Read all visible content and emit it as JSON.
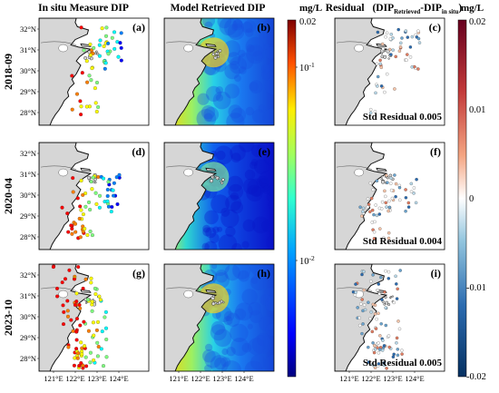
{
  "columns": {
    "insitu": "In situ Measure DIP",
    "model": "Model Retrieved DIP",
    "residual_prefix": "Residual",
    "residual_open": "(DIP",
    "residual_sub1": "Retrieved",
    "residual_mid": "-DIP",
    "residual_sub2": "in situ",
    "residual_close": ")"
  },
  "rows": [
    {
      "date": "2018-09",
      "panels": [
        "(a)",
        "(b)",
        "(c)"
      ],
      "std_label": "Std Residual 0.005"
    },
    {
      "date": "2020-04",
      "panels": [
        "(d)",
        "(e)",
        "(f)"
      ],
      "std_label": "Std Residual 0.004"
    },
    {
      "date": "2023-10",
      "panels": [
        "(g)",
        "(h)",
        "(i)"
      ],
      "std_label": "Std Residual 0.005"
    }
  ],
  "lat_ticks": [
    "32°N",
    "31°N",
    "30°N",
    "29°N",
    "28°N"
  ],
  "lon_ticks": [
    "121°E",
    "122°E",
    "123°E",
    "124°E"
  ],
  "colorbar_dip": {
    "unit": "mg/L",
    "scale": "log",
    "range": [
      0.005,
      0.02
    ],
    "tick_labels": [
      "0.02",
      "10",
      "-1",
      "10",
      "-2"
    ],
    "colors": [
      "#00007f",
      "#0000ff",
      "#007fff",
      "#00ffff",
      "#7fff7f",
      "#ffff00",
      "#ff7f00",
      "#ff0000",
      "#7f0000"
    ]
  },
  "colorbar_residual": {
    "unit": "mg/L",
    "range": [
      -0.02,
      0.02
    ],
    "tick_labels": [
      "0.02",
      "0.01",
      "0",
      "-0.01",
      "-0.02"
    ],
    "colors": [
      "#67001f",
      "#d6604d",
      "#f4a582",
      "#ffffff",
      "#92c5de",
      "#4393c3",
      "#053061"
    ]
  },
  "colors": {
    "land": "#d6d6d6",
    "sea": "#ffffff",
    "coast": "#111111"
  }
}
